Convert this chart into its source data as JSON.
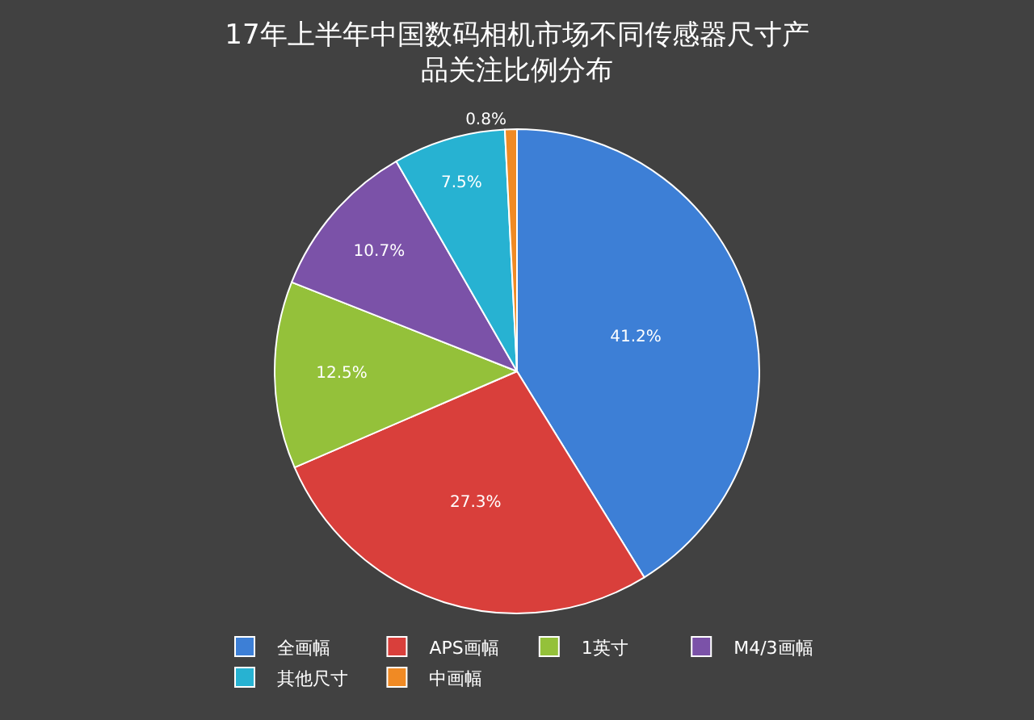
{
  "chart_data": {
    "type": "pie",
    "title": "17年上半年中国数码相机市场不同传感器尺寸产品关注比例分布",
    "categories": [
      "全画幅",
      "APS画幅",
      "1英寸",
      "M4/3画幅",
      "其他尺寸",
      "中画幅"
    ],
    "values": [
      41.2,
      27.3,
      12.5,
      10.7,
      7.5,
      0.8
    ],
    "value_labels": [
      "41.2%",
      "27.3%",
      "12.5%",
      "10.7%",
      "7.5%",
      "0.8%"
    ],
    "colors": [
      "#3d7fd6",
      "#d93f3b",
      "#94c13a",
      "#7b52a8",
      "#27b2d2",
      "#f08a24"
    ],
    "legend": "bottom"
  }
}
